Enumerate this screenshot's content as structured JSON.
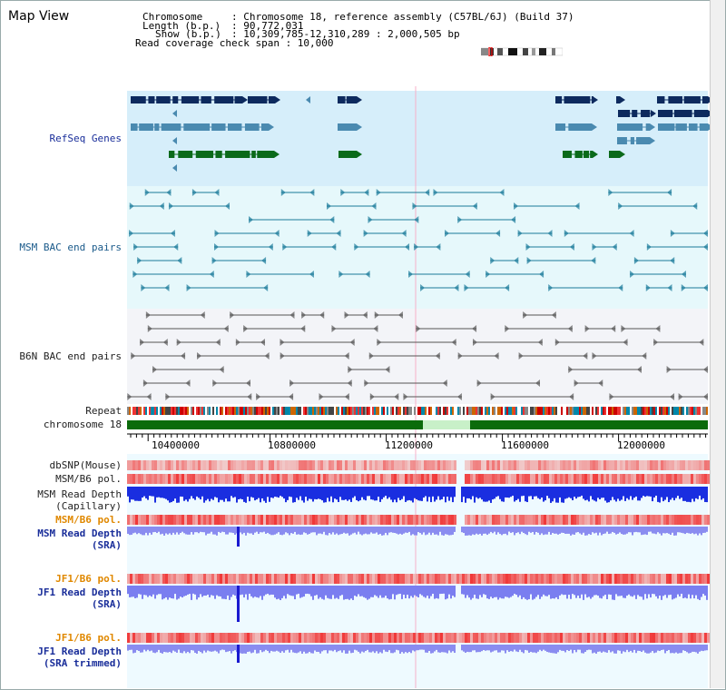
{
  "title": "Map View",
  "info": {
    "chromosome_key": "Chromosome",
    "chromosome_val": ": Chromosome 18, reference assembly (C57BL/6J) (Build 37)",
    "length_key": "Length (b.p.)",
    "length_val": ": 90,772,031",
    "show_key": "Show (b.p.)",
    "show_val": ": 10,309,785-12,310,289 : 2,000,505 bp",
    "coverage": "Read coverage check span : 10,000"
  },
  "tracks": {
    "refseq": "RefSeq Genes",
    "msm_bac": "MSM BAC end pairs",
    "b6n_bac": "B6N BAC end pairs",
    "repeat": "Repeat",
    "chromosome": "chromosome 18",
    "dbsnp": "dbSNP(Mouse)",
    "msm_b6_pol_1": "MSM/B6 pol.",
    "msm_read_depth_cap_1": "MSM Read Depth",
    "msm_read_depth_cap_2": "(Capillary)",
    "msm_b6_pol_2": "MSM/B6 pol.",
    "msm_read_depth_sra_1": "MSM Read Depth",
    "msm_read_depth_sra_2": "(SRA)",
    "jf1_b6_pol_1": "JF1/B6 pol.",
    "jf1_read_depth_sra_1": "JF1 Read Depth",
    "jf1_read_depth_sra_2": "(SRA)",
    "jf1_b6_pol_2": "JF1/B6 pol.",
    "jf1_read_depth_trim_1": "JF1 Read Depth",
    "jf1_read_depth_trim_2": "(SRA trimmed)"
  },
  "axis": {
    "ticks": [
      "10400000",
      "10800000",
      "11200000",
      "11600000",
      "12000000"
    ]
  },
  "colors": {
    "refseq_bg": "#d6eefa",
    "msm_bac_bg": "#e6f8fb",
    "b6n_bac_bg": "#f3f4f8",
    "chromosome_green": "#0b6b0b",
    "chromosome_gap": "#c8f0c8",
    "depth_blue": "#1a2ee0",
    "depth_sra": "#8a8cf0"
  }
}
